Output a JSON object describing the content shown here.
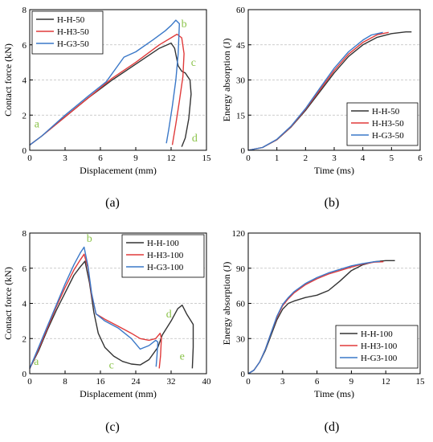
{
  "chart_data": [
    {
      "panel": "a",
      "caption": "(a)",
      "type": "line",
      "xlabel": "Displacement (mm)",
      "ylabel": "Contact force (kN)",
      "xlim": [
        0,
        15
      ],
      "ylim": [
        0,
        8
      ],
      "xticks": [
        0,
        3,
        6,
        9,
        12,
        15
      ],
      "yticks": [
        0,
        2,
        4,
        6,
        8
      ],
      "grid": "horizontal dashed",
      "legend_position": "top-left",
      "annotations": [
        {
          "text": "a",
          "x": 0.6,
          "y": 1.3
        },
        {
          "text": "b",
          "x": 13.1,
          "y": 7.0
        },
        {
          "text": "c",
          "x": 13.9,
          "y": 4.8
        },
        {
          "text": "d",
          "x": 14.0,
          "y": 0.5
        }
      ],
      "series": [
        {
          "name": "H-H-50",
          "color": "#333333",
          "x": [
            0,
            1,
            3,
            5,
            7,
            9,
            11,
            12,
            12.3,
            12.6,
            12.9,
            13.2,
            13.4,
            13.6,
            13.7,
            13.5,
            13.2,
            12.9
          ],
          "y": [
            0.3,
            0.8,
            1.9,
            3.0,
            4.0,
            4.9,
            5.8,
            6.1,
            5.8,
            4.8,
            4.5,
            4.4,
            4.2,
            4.0,
            3.2,
            1.8,
            0.7,
            0.2
          ]
        },
        {
          "name": "H-H3-50",
          "color": "#e03a3a",
          "x": [
            0,
            1,
            3,
            5,
            7,
            9,
            11,
            12,
            12.5,
            12.9,
            13.1,
            13.0,
            12.7,
            12.4,
            12.1
          ],
          "y": [
            0.3,
            0.8,
            1.9,
            3.0,
            4.1,
            5.0,
            6.0,
            6.4,
            6.6,
            6.4,
            5.5,
            4.2,
            2.8,
            1.5,
            0.3
          ]
        },
        {
          "name": "H-G3-50",
          "color": "#3a78c8",
          "x": [
            0,
            1,
            3,
            5,
            6.5,
            8,
            9,
            10.5,
            11.5,
            12,
            12.4,
            12.7,
            12.6,
            12.4,
            12.1,
            11.8,
            11.6
          ],
          "y": [
            0.3,
            0.8,
            2.0,
            3.1,
            3.9,
            5.3,
            5.6,
            6.3,
            6.8,
            7.1,
            7.4,
            7.2,
            5.5,
            4.0,
            2.5,
            1.2,
            0.4
          ]
        }
      ]
    },
    {
      "panel": "b",
      "caption": "(b)",
      "type": "line",
      "xlabel": "Time (ms)",
      "ylabel": "Energy absorption (J)",
      "xlim": [
        0,
        6
      ],
      "ylim": [
        0,
        60
      ],
      "xticks": [
        0,
        1,
        2,
        3,
        4,
        5,
        6
      ],
      "yticks": [
        0,
        15,
        30,
        45,
        60
      ],
      "grid": "horizontal dashed",
      "legend_position": "bottom-right",
      "series": [
        {
          "name": "H-H-50",
          "color": "#333333",
          "x": [
            0,
            0.5,
            1,
            1.5,
            2,
            2.5,
            3,
            3.5,
            4,
            4.5,
            5,
            5.5,
            5.7
          ],
          "y": [
            0,
            1.2,
            4.5,
            10,
            17,
            25,
            33,
            40,
            45,
            48.2,
            49.8,
            50.5,
            50.5
          ]
        },
        {
          "name": "H-H3-50",
          "color": "#e03a3a",
          "x": [
            0,
            0.5,
            1,
            1.5,
            2,
            2.5,
            3,
            3.5,
            4,
            4.5,
            4.9
          ],
          "y": [
            0,
            1.2,
            4.6,
            10.2,
            17.5,
            25.8,
            34,
            41,
            46,
            49.3,
            50.3
          ]
        },
        {
          "name": "H-G3-50",
          "color": "#3a78c8",
          "x": [
            0,
            0.5,
            1,
            1.5,
            2,
            2.5,
            3,
            3.5,
            4,
            4.3,
            4.7
          ],
          "y": [
            0,
            1.2,
            4.7,
            10.4,
            17.8,
            26.5,
            35,
            42,
            47,
            49.2,
            50.3
          ]
        }
      ]
    },
    {
      "panel": "c",
      "caption": "(c)",
      "type": "line",
      "xlabel": "Displacement (mm)",
      "ylabel": "Contact force (kN)",
      "xlim": [
        0,
        40
      ],
      "ylim": [
        0,
        8
      ],
      "xticks": [
        0,
        8,
        16,
        24,
        32,
        40
      ],
      "yticks": [
        0,
        2,
        4,
        6,
        8
      ],
      "grid": "horizontal dashed",
      "legend_position": "top-right",
      "annotations": [
        {
          "text": "a",
          "x": 1.5,
          "y": 0.5
        },
        {
          "text": "b",
          "x": 13.5,
          "y": 7.5
        },
        {
          "text": "c",
          "x": 18.5,
          "y": 0.3
        },
        {
          "text": "d",
          "x": 31.5,
          "y": 3.2
        },
        {
          "text": "e",
          "x": 34.5,
          "y": 0.8
        }
      ],
      "series": [
        {
          "name": "H-H-100",
          "color": "#333333",
          "x": [
            0,
            2,
            4,
            6,
            8,
            10,
            11.5,
            12.5,
            13.5,
            14.5,
            15.5,
            17,
            19,
            21,
            23,
            25,
            27,
            29,
            30,
            32,
            33.5,
            34.5,
            35.5,
            36.5,
            37,
            37,
            36.8
          ],
          "y": [
            0.3,
            1.3,
            2.5,
            3.6,
            4.6,
            5.6,
            6.1,
            6.4,
            5.2,
            3.5,
            2.3,
            1.5,
            1.0,
            0.7,
            0.55,
            0.5,
            0.8,
            1.5,
            2.2,
            3.0,
            3.7,
            3.9,
            3.4,
            3.0,
            2.8,
            1.5,
            0.3
          ]
        },
        {
          "name": "H-H3-100",
          "color": "#e03a3a",
          "x": [
            0,
            2,
            4,
            6,
            8,
            10,
            11.5,
            12.3,
            13.2,
            14,
            15,
            17,
            20,
            23,
            25,
            27,
            28.5,
            29.5,
            29.8,
            29.6,
            29.3
          ],
          "y": [
            0.3,
            1.4,
            2.6,
            3.8,
            4.9,
            5.9,
            6.5,
            6.8,
            6.0,
            4.5,
            3.4,
            3.1,
            2.7,
            2.3,
            2.0,
            1.9,
            2.0,
            2.3,
            2.0,
            1.0,
            0.3
          ]
        },
        {
          "name": "H-G3-100",
          "color": "#3a78c8",
          "x": [
            0,
            2,
            4,
            6,
            8,
            10,
            11.5,
            12.3,
            13.2,
            14,
            15,
            17,
            20,
            23,
            25,
            27,
            28.5,
            29,
            28.8,
            28.6
          ],
          "y": [
            0.3,
            1.5,
            2.7,
            3.9,
            5.1,
            6.2,
            6.9,
            7.2,
            6.1,
            4.6,
            3.4,
            3.0,
            2.6,
            2.0,
            1.4,
            1.6,
            1.9,
            1.8,
            1.0,
            0.4
          ]
        }
      ]
    },
    {
      "panel": "d",
      "caption": "(d)",
      "type": "line",
      "xlabel": "Time (ms)",
      "ylabel": "Energy absorption (J)",
      "xlim": [
        0,
        15
      ],
      "ylim": [
        0,
        120
      ],
      "xticks": [
        0,
        3,
        6,
        9,
        12,
        15
      ],
      "yticks": [
        0,
        30,
        60,
        90,
        120
      ],
      "grid": "horizontal dashed",
      "legend_position": "bottom-right",
      "series": [
        {
          "name": "H-H-100",
          "color": "#333333",
          "x": [
            0,
            0.5,
            1,
            1.5,
            2,
            2.5,
            3,
            3.5,
            4,
            5,
            6,
            7,
            8,
            9,
            10,
            11,
            12,
            12.8
          ],
          "y": [
            0,
            3,
            10,
            20,
            33,
            46,
            55,
            60,
            62,
            65,
            67,
            71,
            79,
            88,
            93,
            95.5,
            96.5,
            96.5
          ]
        },
        {
          "name": "H-H3-100",
          "color": "#e03a3a",
          "x": [
            0,
            0.5,
            1,
            1.5,
            2,
            2.5,
            3,
            3.5,
            4,
            5,
            6,
            7,
            8,
            9,
            10,
            11,
            11.8
          ],
          "y": [
            0,
            3,
            10,
            21,
            35,
            48,
            58,
            64,
            69,
            76,
            81,
            85,
            88,
            91,
            93.5,
            95.2,
            95.5
          ]
        },
        {
          "name": "H-G3-100",
          "color": "#3a78c8",
          "x": [
            0,
            0.5,
            1,
            1.5,
            2,
            2.5,
            3,
            3.5,
            4,
            5,
            6,
            7,
            8,
            9,
            10,
            11,
            11.5
          ],
          "y": [
            0,
            3,
            10,
            21,
            35,
            49,
            59,
            65,
            70,
            77,
            82,
            86,
            89,
            92,
            94,
            95.5,
            95.8
          ]
        }
      ]
    }
  ]
}
